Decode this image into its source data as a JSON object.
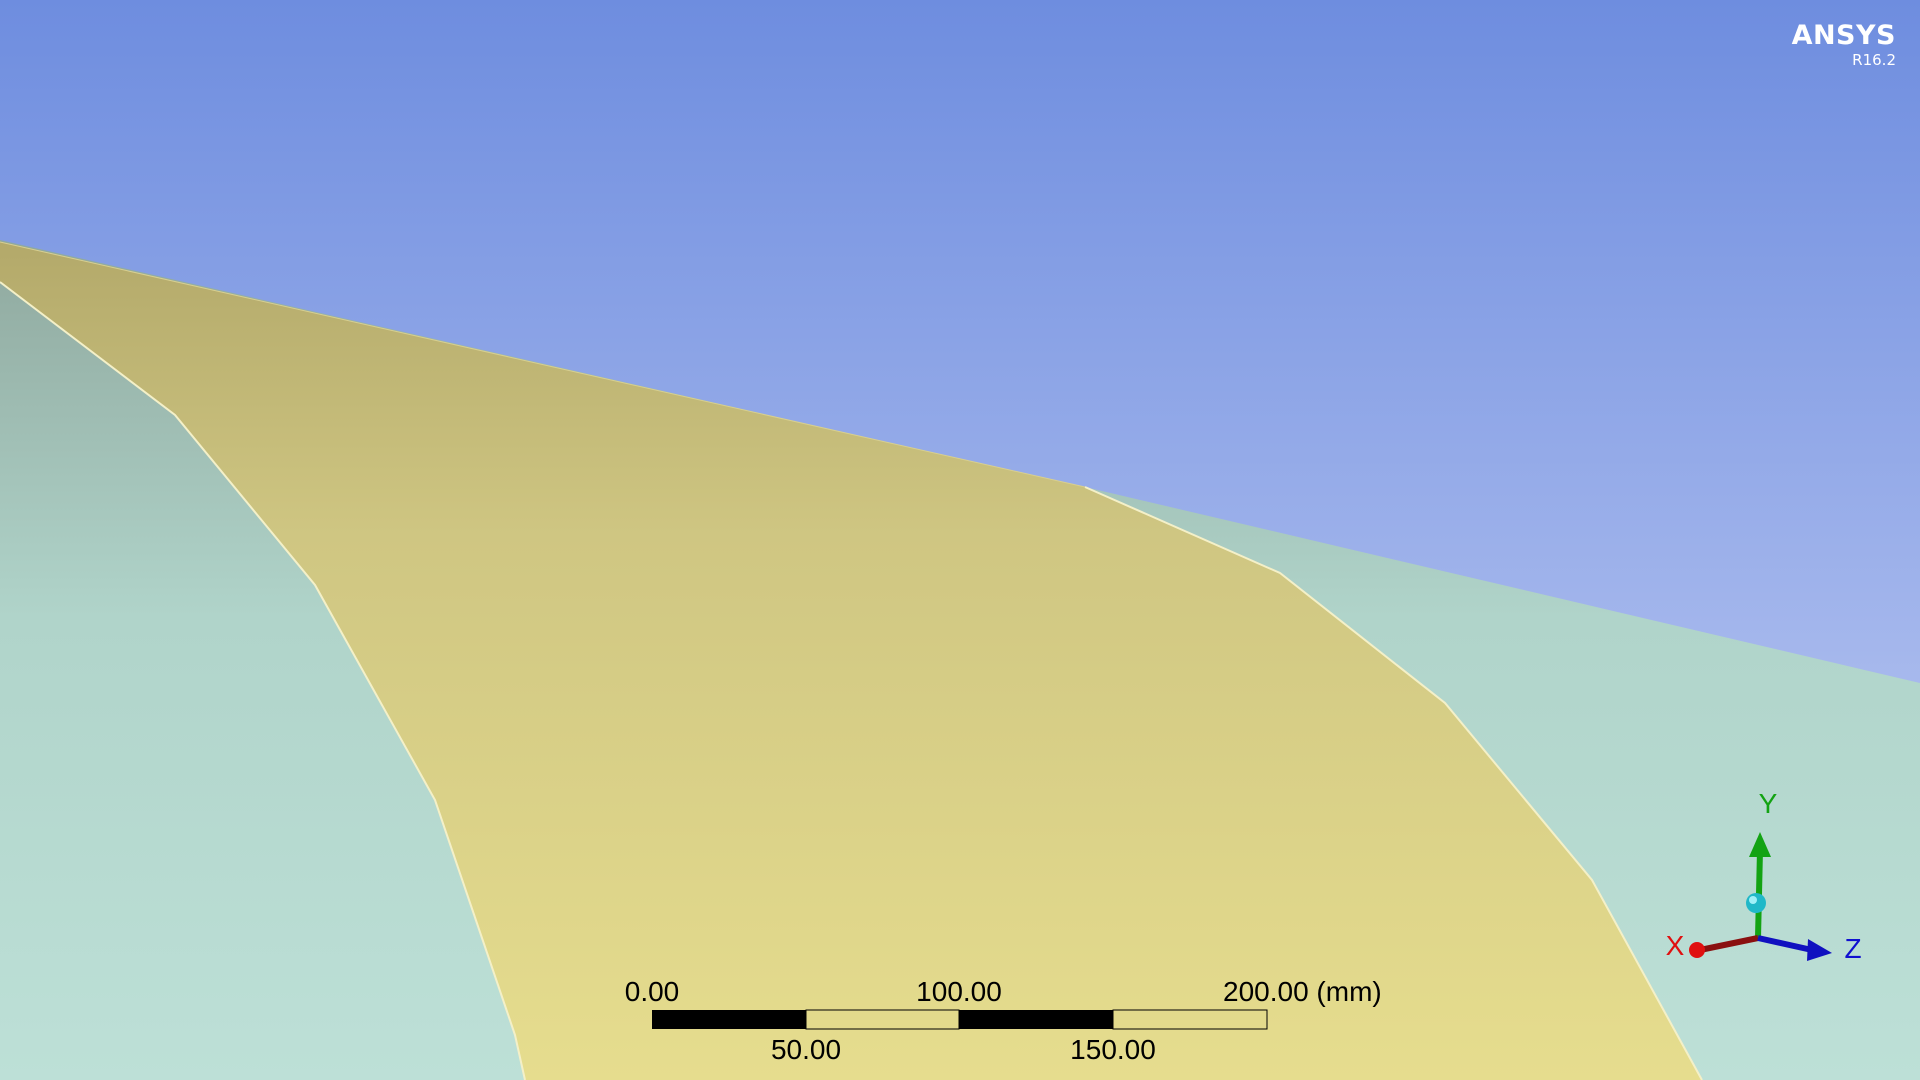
{
  "logo": {
    "brand": "ANSYS",
    "version": "R16.2"
  },
  "scale_bar": {
    "top_labels": [
      "0.00",
      "100.00",
      "200.00 (mm)"
    ],
    "bottom_labels": [
      "50.00",
      "150.00"
    ]
  },
  "triad": {
    "x_label": "X",
    "y_label": "Y",
    "z_label": "Z"
  },
  "colors": {
    "background_top": "#6e8ddf",
    "background_bottom": "#c5cff4",
    "body_yellow": "#e3da8c",
    "body_teal": "#bcdfd6",
    "x_axis": "#e01010",
    "y_axis": "#10a010",
    "z_axis": "#1010d0"
  }
}
